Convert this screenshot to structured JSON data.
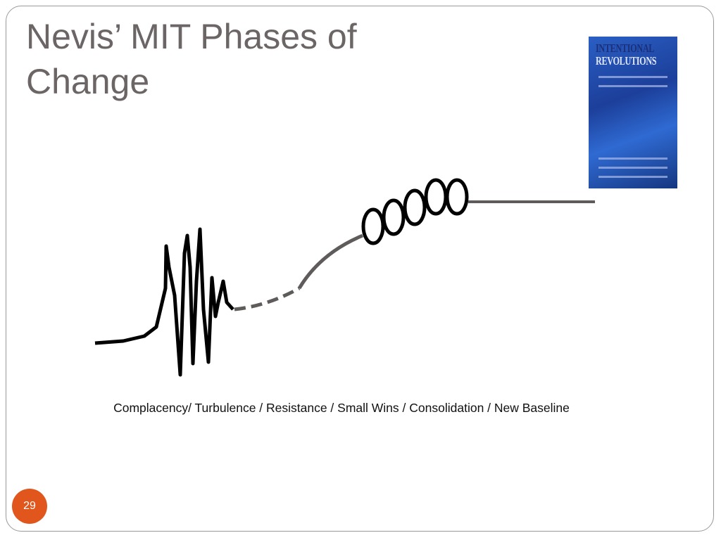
{
  "slide": {
    "title": "Nevis’ MIT Phases of Change",
    "caption": "Complacency/ Turbulence / Resistance / Small Wins / Consolidation / New Baseline",
    "number": "29"
  },
  "book": {
    "title_lines": [
      "INTENTIONAL",
      "REVOLUTIONS"
    ]
  }
}
